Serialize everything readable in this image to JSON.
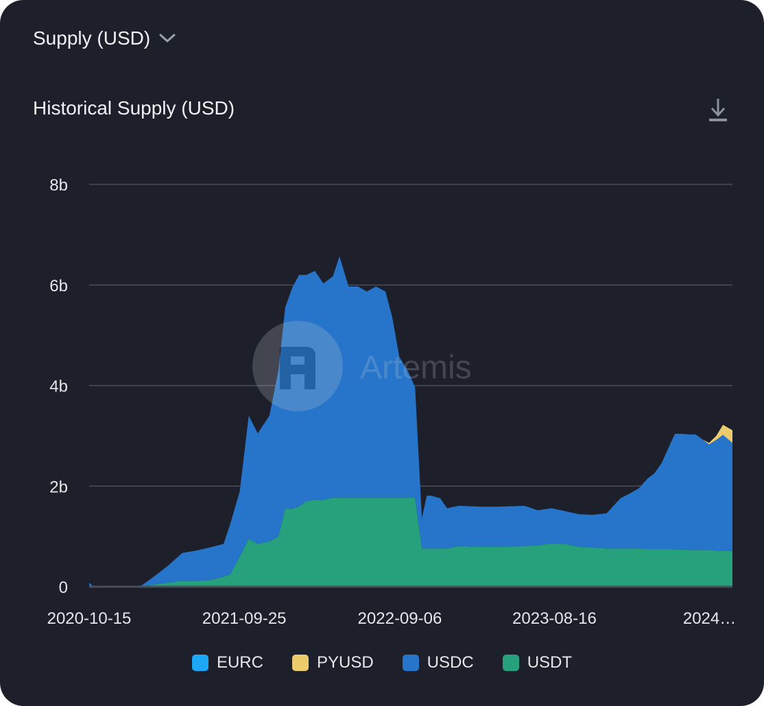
{
  "header": {
    "metric_label": "Supply (USD)"
  },
  "chart_title": "Historical Supply (USD)",
  "watermark": "Artemis",
  "icons": {
    "dropdown": "chevron-down-icon",
    "download": "download-icon"
  },
  "colors": {
    "background": "#1d202a",
    "grid": "#4a4e5a",
    "text": "#e6e7ea",
    "EURC": "#1ea7f5",
    "PYUSD": "#eccb6c",
    "USDC": "#2775ca",
    "USDT": "#26a17b"
  },
  "chart_data": {
    "type": "area",
    "stacked": true,
    "y_ticks": [
      "0",
      "2b",
      "4b",
      "6b",
      "8b"
    ],
    "ylim": [
      0,
      8000000000
    ],
    "x_tick_labels": [
      "2020-10-15",
      "2021-09-25",
      "2022-09-06",
      "2023-08-16",
      "2024…"
    ],
    "x_tick_dates": [
      "2020-10-15",
      "2021-09-25",
      "2022-09-06",
      "2023-08-16",
      "2024-07-26"
    ],
    "xlim": [
      "2020-10-15",
      "2024-09-15"
    ],
    "grid": true,
    "legend_position": "bottom",
    "x": [
      "2020-10-15",
      "2020-10-25",
      "2020-11-15",
      "2020-12-15",
      "2021-01-15",
      "2021-02-10",
      "2021-03-15",
      "2021-04-10",
      "2021-05-10",
      "2021-06-10",
      "2021-07-10",
      "2021-08-10",
      "2021-08-25",
      "2021-09-15",
      "2021-10-05",
      "2021-10-25",
      "2021-11-20",
      "2021-12-10",
      "2021-12-25",
      "2022-01-10",
      "2022-01-25",
      "2022-02-10",
      "2022-03-01",
      "2022-03-20",
      "2022-04-10",
      "2022-04-25",
      "2022-05-15",
      "2022-06-05",
      "2022-06-25",
      "2022-07-15",
      "2022-08-05",
      "2022-08-20",
      "2022-09-05",
      "2022-09-25",
      "2022-10-10",
      "2022-10-25",
      "2022-11-05",
      "2022-11-15",
      "2022-12-05",
      "2022-12-20",
      "2023-01-15",
      "2023-02-10",
      "2023-03-10",
      "2023-04-10",
      "2023-05-10",
      "2023-06-10",
      "2023-07-10",
      "2023-08-10",
      "2023-09-10",
      "2023-10-10",
      "2023-11-10",
      "2023-12-10",
      "2024-01-10",
      "2024-02-01",
      "2024-02-20",
      "2024-03-10",
      "2024-03-25",
      "2024-04-10",
      "2024-04-25",
      "2024-05-10",
      "2024-05-25",
      "2024-06-10",
      "2024-06-25",
      "2024-07-10",
      "2024-07-25",
      "2024-08-10",
      "2024-08-25",
      "2024-09-15"
    ],
    "series": [
      {
        "name": "EURC",
        "values": [
          0,
          0,
          0,
          0,
          0,
          0,
          0,
          0,
          0,
          0,
          0,
          0,
          0,
          0,
          0,
          0,
          0,
          0,
          0,
          0,
          0,
          0,
          0,
          0,
          0,
          0,
          0,
          0,
          0,
          0,
          0,
          0,
          0,
          0,
          0,
          0,
          0,
          0,
          0,
          0,
          0,
          0,
          0,
          0,
          0,
          0,
          0,
          0,
          0,
          0,
          0,
          0,
          0,
          0,
          0,
          0,
          0,
          0,
          0,
          0,
          0,
          0,
          0,
          0,
          0,
          0,
          0,
          0
        ]
      },
      {
        "name": "PYUSD",
        "values": [
          0,
          0,
          0,
          0,
          0,
          0,
          0,
          0,
          0,
          0,
          0,
          0,
          0,
          0,
          0,
          0,
          0,
          0,
          0,
          0,
          0,
          0,
          0,
          0,
          0,
          0,
          0,
          0,
          0,
          0,
          0,
          0,
          0,
          0,
          0,
          0,
          0,
          0,
          0,
          0,
          0,
          0,
          0,
          0,
          0,
          0,
          0,
          0,
          0,
          0,
          0,
          0,
          0,
          0,
          0,
          0,
          0,
          0,
          0,
          0,
          0,
          0,
          0,
          0,
          30000000,
          80000000,
          200000000,
          250000000
        ]
      },
      {
        "name": "USDC",
        "values": [
          80000000,
          0,
          0,
          0,
          0,
          20000000,
          200000000,
          350000000,
          550000000,
          600000000,
          650000000,
          650000000,
          1000000000,
          1300000000,
          2450000000,
          2200000000,
          2500000000,
          3300000000,
          4000000000,
          4400000000,
          4600000000,
          4500000000,
          4550000000,
          4300000000,
          4400000000,
          4800000000,
          4200000000,
          4200000000,
          4100000000,
          4200000000,
          4100000000,
          3600000000,
          2800000000,
          2500000000,
          2200000000,
          600000000,
          1050000000,
          1050000000,
          1000000000,
          800000000,
          800000000,
          800000000,
          800000000,
          800000000,
          800000000,
          800000000,
          700000000,
          700000000,
          650000000,
          650000000,
          650000000,
          700000000,
          1000000000,
          1100000000,
          1200000000,
          1400000000,
          1500000000,
          1700000000,
          2000000000,
          2300000000,
          2300000000,
          2300000000,
          2300000000,
          2200000000,
          2100000000,
          2200000000,
          2300000000,
          2150000000
        ]
      },
      {
        "name": "USDT",
        "values": [
          0,
          0,
          0,
          0,
          0,
          10000000,
          50000000,
          80000000,
          120000000,
          120000000,
          130000000,
          200000000,
          250000000,
          600000000,
          950000000,
          850000000,
          900000000,
          1000000000,
          1550000000,
          1550000000,
          1600000000,
          1700000000,
          1730000000,
          1730000000,
          1770000000,
          1770000000,
          1770000000,
          1770000000,
          1770000000,
          1770000000,
          1770000000,
          1770000000,
          1770000000,
          1770000000,
          1770000000,
          760000000,
          760000000,
          760000000,
          760000000,
          760000000,
          810000000,
          800000000,
          790000000,
          790000000,
          800000000,
          810000000,
          820000000,
          860000000,
          850000000,
          790000000,
          780000000,
          760000000,
          760000000,
          760000000,
          760000000,
          750000000,
          750000000,
          750000000,
          750000000,
          740000000,
          740000000,
          730000000,
          730000000,
          730000000,
          730000000,
          720000000,
          720000000,
          710000000
        ]
      }
    ]
  }
}
